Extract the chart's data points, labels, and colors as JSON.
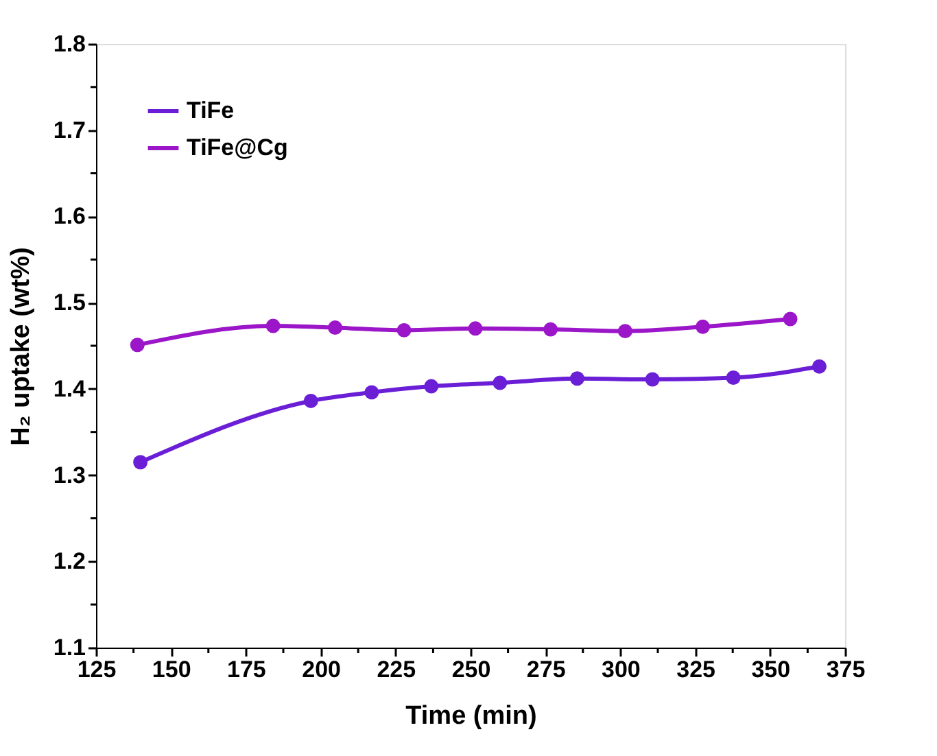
{
  "chart_data": {
    "type": "line",
    "xlabel": "Time (min)",
    "ylabel": "H₂ uptake (wt%)",
    "series": [
      {
        "name": "TiFe",
        "color": "#6a1fd6",
        "x": [
          139.8,
          196.7,
          217.0,
          236.9,
          259.8,
          285.6,
          310.7,
          337.7,
          366.4
        ],
        "values": [
          1.315,
          1.386,
          1.396,
          1.403,
          1.407,
          1.412,
          1.411,
          1.413,
          1.426
        ]
      },
      {
        "name": "TiFe@Cg",
        "color": "#9b16c8",
        "x": [
          138.8,
          184.1,
          204.8,
          227.8,
          251.6,
          276.7,
          301.6,
          327.5,
          356.7
        ],
        "values": [
          1.451,
          1.473,
          1.471,
          1.468,
          1.47,
          1.469,
          1.467,
          1.472,
          1.481
        ]
      }
    ],
    "xlim": [
      125,
      375
    ],
    "xticks": [
      125,
      {
        "value": 137.5,
        "label": null
      },
      150,
      {
        "value": 162.5,
        "label": null
      },
      175,
      {
        "value": 187.5,
        "label": null
      },
      200,
      {
        "value": 212.5,
        "label": null
      },
      225,
      {
        "value": 237.5,
        "label": null
      },
      250,
      {
        "value": 262.5,
        "label": null
      },
      275,
      {
        "value": 287.5,
        "label": null
      },
      300,
      {
        "value": 312.5,
        "label": null
      },
      325,
      {
        "value": 337.5,
        "label": null
      },
      350,
      {
        "value": 362.5,
        "label": null
      },
      375
    ],
    "ylim": [
      1.1,
      1.8
    ],
    "yticks": [
      {
        "value": 1.1,
        "label": "1.1"
      },
      {
        "value": 1.15,
        "label": null
      },
      {
        "value": 1.2,
        "label": "1.2"
      },
      {
        "value": 1.25,
        "label": null
      },
      {
        "value": 1.3,
        "label": "1.3"
      },
      {
        "value": 1.35,
        "label": null
      },
      {
        "value": 1.4,
        "label": "1.4"
      },
      {
        "value": 1.45,
        "label": null
      },
      {
        "value": 1.5,
        "label": "1.5"
      },
      {
        "value": 1.55,
        "label": null
      },
      {
        "value": 1.6,
        "label": "1.6"
      },
      {
        "value": 1.65,
        "label": null
      },
      {
        "value": 1.7,
        "label": "1.7"
      },
      {
        "value": 1.75,
        "label": null
      },
      {
        "value": 1.8,
        "label": "1.8"
      }
    ],
    "grid": false,
    "legend": "top left",
    "marker": "circle",
    "line_style": "solid"
  }
}
